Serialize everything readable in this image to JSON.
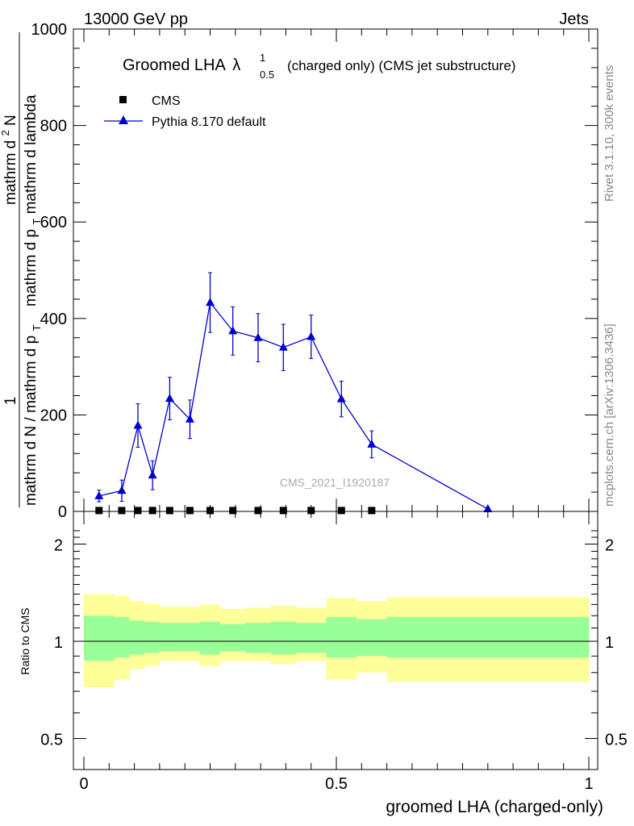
{
  "header": {
    "left": "13000 GeV pp",
    "right": "Jets"
  },
  "side_labels": {
    "rivet": "Rivet 3.1.10,  300k events",
    "mcplots": "mcplots.cern.ch [arXiv:1306.3436]"
  },
  "watermark": "CMS_2021_I1920187",
  "chart_data": [
    {
      "type": "line",
      "title_main": "Groomed LHA",
      "title_symbol": "λ",
      "title_sup": "1",
      "title_sub": "0.5",
      "title_rest": "(charged only) (CMS jet substructure)",
      "ylabel_numerator": "1",
      "ylabel_denominator": "mathrm d N / mathrm d p",
      "ylabel_denominator_sub": "T",
      "ylabel_fraction_numerator": "mathrm d",
      "ylabel_fraction_numerator_sup": "2",
      "ylabel_fraction_numerator_rest": "N",
      "ylabel_fraction_denominator": "mathrm d p",
      "ylabel_fraction_denominator_sub": "T",
      "ylabel_fraction_denominator_rest": "mathrm d lambda",
      "xlabel": "groomed LHA (charged-only)",
      "xlim": [
        0,
        1
      ],
      "ylim": [
        0,
        1000
      ],
      "yticks": [
        0,
        200,
        400,
        600,
        800,
        1000
      ],
      "ytick_labels": [
        "0",
        "200",
        "400",
        "600",
        "800",
        "1000"
      ],
      "legend": [
        {
          "name": "CMS",
          "marker": "square",
          "color": "#000000"
        },
        {
          "name": "Pythia 8.170 default",
          "marker": "triangle",
          "color": "#0000cc"
        }
      ],
      "series": [
        {
          "name": "CMS",
          "x": [
            0.03,
            0.075,
            0.107,
            0.136,
            0.17,
            0.21,
            0.25,
            0.295,
            0.345,
            0.395,
            0.45,
            0.51,
            0.57
          ],
          "y": [
            1,
            1,
            1,
            1,
            1,
            1,
            1,
            1,
            1,
            1,
            1,
            1,
            1
          ]
        },
        {
          "name": "Pythia 8.170 default",
          "x": [
            0.03,
            0.075,
            0.107,
            0.136,
            0.17,
            0.21,
            0.25,
            0.295,
            0.345,
            0.395,
            0.45,
            0.51,
            0.57,
            0.8
          ],
          "y": [
            32,
            43,
            178,
            75,
            234,
            191,
            433,
            374,
            360,
            340,
            362,
            233,
            139,
            5
          ],
          "err": [
            12,
            22,
            45,
            30,
            44,
            40,
            62,
            50,
            50,
            48,
            45,
            37,
            28,
            3
          ]
        }
      ],
      "grid": false
    },
    {
      "type": "area",
      "ylabel": "Ratio to CMS",
      "xlabel": "groomed LHA (charged-only)",
      "xlim": [
        0,
        1
      ],
      "ylim": [
        0.4,
        2.3
      ],
      "yticks": [
        0.5,
        1,
        2
      ],
      "ytick_labels": [
        "0.5",
        "1",
        "2"
      ],
      "xticks": [
        0,
        0.5,
        1
      ],
      "xtick_labels": [
        "0",
        "0.5",
        "1"
      ],
      "bins": [
        0,
        0.06,
        0.09,
        0.12,
        0.15,
        0.19,
        0.23,
        0.27,
        0.32,
        0.37,
        0.42,
        0.48,
        0.54,
        0.6,
        1.0
      ],
      "outer_band_low": [
        0.72,
        0.76,
        0.82,
        0.84,
        0.87,
        0.87,
        0.84,
        0.87,
        0.87,
        0.85,
        0.87,
        0.76,
        0.8,
        0.75
      ],
      "outer_band_high": [
        1.4,
        1.38,
        1.33,
        1.31,
        1.28,
        1.28,
        1.3,
        1.26,
        1.27,
        1.29,
        1.27,
        1.36,
        1.33,
        1.37
      ],
      "inner_band_low": [
        0.87,
        0.89,
        0.91,
        0.92,
        0.93,
        0.93,
        0.91,
        0.93,
        0.92,
        0.91,
        0.92,
        0.89,
        0.9,
        0.89
      ],
      "inner_band_high": [
        1.2,
        1.19,
        1.16,
        1.15,
        1.14,
        1.14,
        1.15,
        1.13,
        1.14,
        1.15,
        1.14,
        1.19,
        1.17,
        1.19
      ],
      "outer_color": "#ffff99",
      "inner_color": "#99ff99",
      "reference": 1
    }
  ]
}
